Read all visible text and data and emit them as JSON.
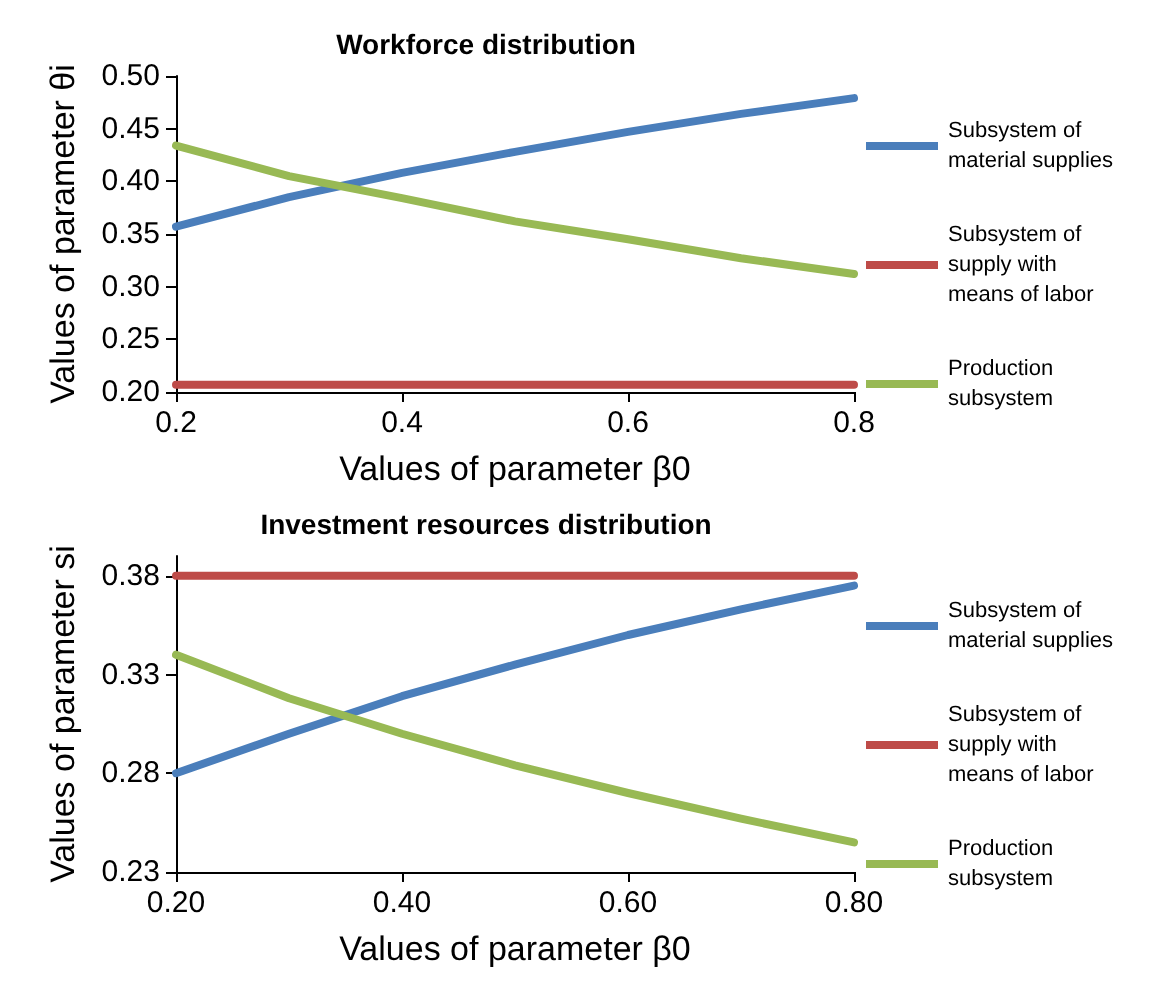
{
  "chart_data": [
    {
      "type": "line",
      "title": "Workforce distribution",
      "xlabel": "Values of parameter β0",
      "ylabel": "Values of parameter θi",
      "x": [
        0.2,
        0.3,
        0.4,
        0.5,
        0.6,
        0.7,
        0.8
      ],
      "series": [
        {
          "name": "Subsystem of material supplies",
          "color": "#4a7ebb",
          "values": [
            0.357,
            0.385,
            0.408,
            0.428,
            0.447,
            0.464,
            0.479
          ]
        },
        {
          "name": "Subsystem of supply with means of labor",
          "color": "#be4b48",
          "values": [
            0.207,
            0.207,
            0.207,
            0.207,
            0.207,
            0.207,
            0.207
          ]
        },
        {
          "name": "Production subsystem",
          "color": "#98b954",
          "values": [
            0.434,
            0.405,
            0.384,
            0.362,
            0.345,
            0.327,
            0.312
          ]
        }
      ],
      "xlim": [
        0.2,
        0.8
      ],
      "xticks": [
        0.2,
        0.4,
        0.6,
        0.8
      ],
      "ylim": [
        0.2,
        0.5
      ],
      "yticks": [
        {
          "value": 0.2,
          "label": "0.20"
        },
        {
          "value": 0.25,
          "label": "0.25"
        },
        {
          "value": 0.3,
          "label": "0.30"
        },
        {
          "value": 0.35,
          "label": "0.35"
        },
        {
          "value": 0.4,
          "label": "0.40"
        },
        {
          "value": 0.45,
          "label": "0.45"
        },
        {
          "value": 0.5,
          "label": "0.50"
        }
      ],
      "grid": false,
      "legend": "right",
      "marker": "none",
      "line_style": "solid"
    },
    {
      "type": "line",
      "title": "Investment resources distribution",
      "xlabel": "Values of parameter β0",
      "ylabel": "Values of parameter si",
      "x": [
        0.2,
        0.3,
        0.4,
        0.5,
        0.6,
        0.7,
        0.8
      ],
      "series": [
        {
          "name": "Subsystem of material supplies",
          "color": "#4a7ebb",
          "values": [
            0.28,
            0.3,
            0.319,
            0.335,
            0.35,
            0.363,
            0.375
          ]
        },
        {
          "name": "Subsystem of supply with means of labor",
          "color": "#be4b48",
          "values": [
            0.38,
            0.38,
            0.38,
            0.38,
            0.38,
            0.38,
            0.38
          ]
        },
        {
          "name": "Production subsystem",
          "color": "#98b954",
          "values": [
            0.34,
            0.318,
            0.3,
            0.284,
            0.27,
            0.257,
            0.245
          ]
        }
      ],
      "xlim": [
        0.2,
        0.8
      ],
      "xticks": [
        {
          "value": 0.2,
          "label": "0.20"
        },
        {
          "value": 0.4,
          "label": "0.40"
        },
        {
          "value": 0.6,
          "label": "0.60"
        },
        {
          "value": 0.8,
          "label": "0.80"
        }
      ],
      "ylim": [
        0.23,
        0.39
      ],
      "yticks": [
        0.23,
        0.28,
        0.33,
        0.38
      ],
      "grid": false,
      "legend": "right",
      "marker": "none",
      "line_style": "solid"
    }
  ]
}
